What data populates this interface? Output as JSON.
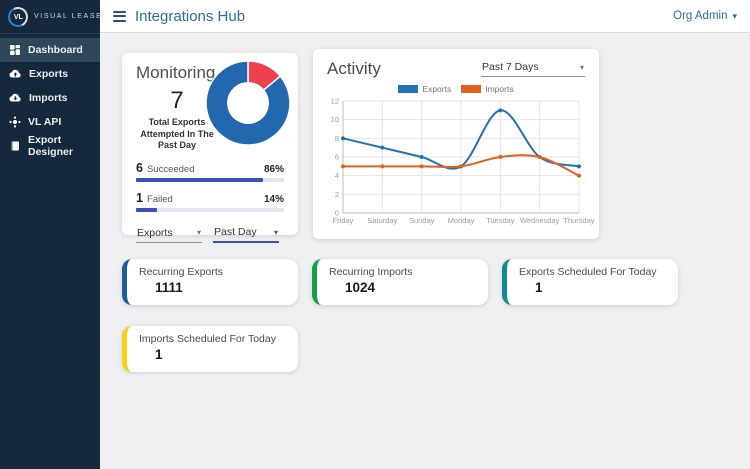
{
  "app": {
    "brand": "VISUAL LEASE",
    "logo_text": "VL"
  },
  "header": {
    "title": "Integrations Hub",
    "user_menu": "Org Admin"
  },
  "sidebar": {
    "items": [
      {
        "label": "Dashboard",
        "icon": "dashboard-icon",
        "active": true
      },
      {
        "label": "Exports",
        "icon": "cloud-upload-icon",
        "active": false
      },
      {
        "label": "Imports",
        "icon": "cloud-download-icon",
        "active": false
      },
      {
        "label": "VL API",
        "icon": "api-icon",
        "active": false
      },
      {
        "label": "Export Designer",
        "icon": "book-icon",
        "active": false
      }
    ]
  },
  "monitoring": {
    "title": "Monitoring",
    "total": "7",
    "total_caption": "Total Exports Attempted In The Past Day",
    "rows": [
      {
        "count": "6",
        "label": "Succeeded",
        "percent": "86%",
        "percent_value": 86
      },
      {
        "count": "1",
        "label": "Failed",
        "percent": "14%",
        "percent_value": 14
      }
    ],
    "type_select": "Exports",
    "range_select": "Past Day",
    "bar_color": "#3d4eb8"
  },
  "activity": {
    "title": "Activity",
    "range_select": "Past 7 Days"
  },
  "chart_data": [
    {
      "type": "pie",
      "title": "Exports attempted in the past day",
      "labels": [
        "Failed",
        "Succeeded"
      ],
      "values": [
        14,
        86
      ],
      "colors": [
        "#ef4050",
        "#2268ae"
      ],
      "hole": 0.48,
      "start_angle_deg": -90
    },
    {
      "type": "line",
      "title": "Activity - Past 7 Days",
      "categories": [
        "Friday",
        "Saturday",
        "Sunday",
        "Monday",
        "Tuesday",
        "Wednesday",
        "Thursday"
      ],
      "series": [
        {
          "name": "Exports",
          "color": "#2273b5",
          "values": [
            8,
            7,
            6,
            5,
            11,
            6,
            5
          ]
        },
        {
          "name": "Imports",
          "color": "#e2611d",
          "values": [
            5,
            5,
            5,
            5,
            6,
            6,
            4
          ]
        }
      ],
      "ylim": [
        0,
        12
      ],
      "ytick_step": 2,
      "grid": true,
      "legend_position": "top",
      "xlabel": "",
      "ylabel": ""
    }
  ],
  "stats": [
    {
      "label": "Recurring Exports",
      "value": "1111",
      "accent": "#1c5d99"
    },
    {
      "label": "Recurring Imports",
      "value": "1024",
      "accent": "#12a04f"
    },
    {
      "label": "Exports Scheduled For Today",
      "value": "1",
      "accent": "#12898c"
    },
    {
      "label": "Imports Scheduled For Today",
      "value": "1",
      "accent": "#f7d117"
    }
  ]
}
